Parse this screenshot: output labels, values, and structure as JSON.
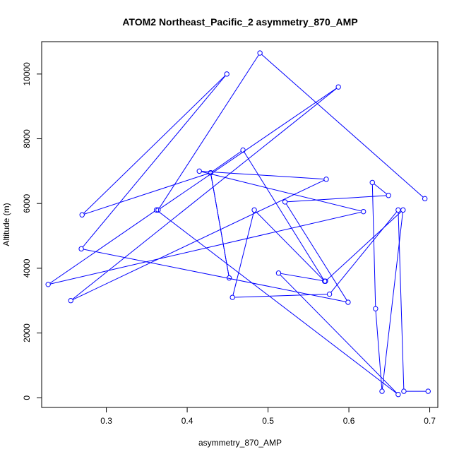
{
  "chart_data": {
    "type": "line",
    "title": "ATOM2 Northeast_Pacific_2 asymmetry_870_AMP",
    "xlabel": "asymmetry_870_AMP",
    "ylabel": "Altitude (m)",
    "xlim": [
      0.22,
      0.71
    ],
    "ylim": [
      -300,
      11000
    ],
    "xticks": [
      "0.3",
      "0.4",
      "0.5",
      "0.6",
      "0.7"
    ],
    "yticks": [
      "0",
      "2000",
      "4000",
      "6000",
      "8000",
      "10000"
    ],
    "grid": false,
    "marker": "open-circle",
    "color": "#0000ff",
    "series": [
      {
        "x": [
          0.698,
          0.668,
          0.661,
          0.576,
          0.456,
          0.483,
          0.57,
          0.469,
          0.429,
          0.452,
          0.429,
          0.27,
          0.449,
          0.269,
          0.599,
          0.521,
          0.649,
          0.629,
          0.633,
          0.641,
          0.667,
          0.571,
          0.513,
          0.661,
          0.362,
          0.228,
          0.618,
          0.415,
          0.572,
          0.256,
          0.587,
          0.364,
          0.49,
          0.694
        ],
        "y": [
          200,
          200,
          5800,
          3200,
          3100,
          5800,
          3600,
          7650,
          6950,
          3700,
          6950,
          5650,
          10000,
          4600,
          2950,
          6050,
          6250,
          6650,
          2750,
          200,
          5800,
          3600,
          3850,
          100,
          5800,
          3500,
          5750,
          7000,
          6750,
          3000,
          9600,
          5800,
          10650,
          6150
        ]
      }
    ]
  }
}
